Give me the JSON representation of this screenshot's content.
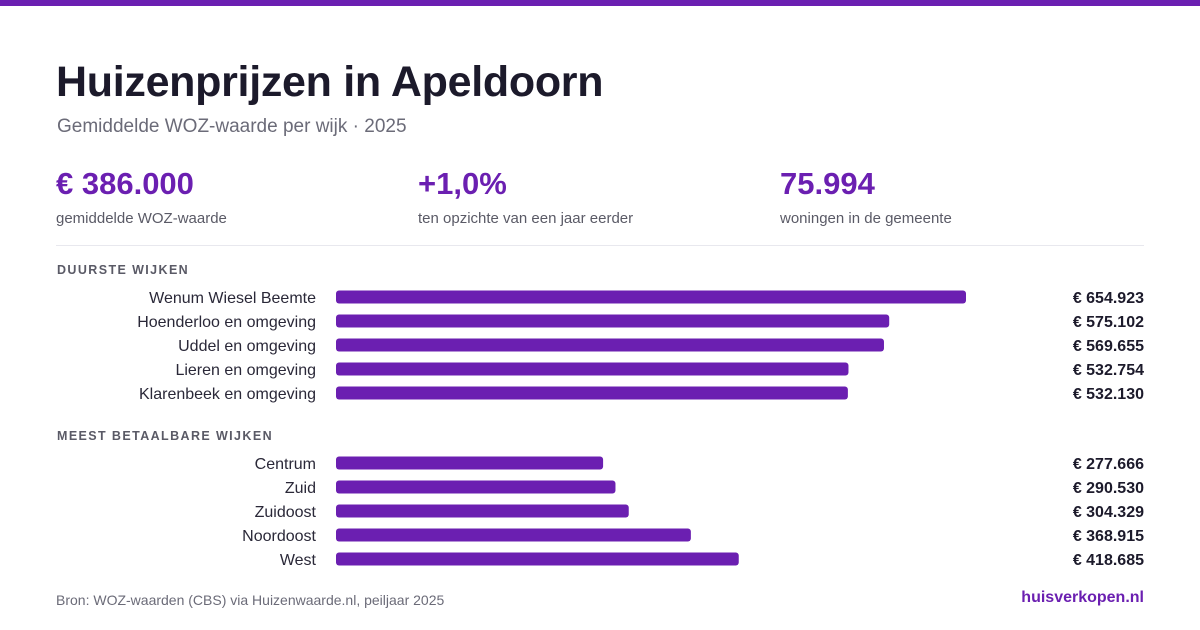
{
  "header": {
    "title": "Huizenprijzen in Apeldoorn",
    "subtitle": "Gemiddelde WOZ-waarde per wijk · 2025"
  },
  "stats": [
    {
      "value": "€ 386.000",
      "label": "gemiddelde WOZ-waarde"
    },
    {
      "value": "+1,0%",
      "label": "ten opzichte van een jaar eerder"
    },
    {
      "value": "75.994",
      "label": "woningen in de gemeente"
    }
  ],
  "colors": {
    "accent": "#6b1fb1",
    "text": "#1c1a2b",
    "muted": "#6b6b78"
  },
  "chart_data": [
    {
      "type": "bar",
      "orientation": "horizontal",
      "title": "DUURSTE WIJKEN",
      "categories": [
        "Wenum Wiesel Beemte",
        "Hoenderloo en omgeving",
        "Uddel en omgeving",
        "Lieren en omgeving",
        "Klarenbeek en omgeving"
      ],
      "values": [
        654923,
        575102,
        569655,
        532754,
        532130
      ],
      "value_labels": [
        "€ 654.923",
        "€ 575.102",
        "€ 569.655",
        "€ 532.754",
        "€ 532.130"
      ],
      "xlim": [
        0,
        654923
      ],
      "grid": false
    },
    {
      "type": "bar",
      "orientation": "horizontal",
      "title": "MEEST BETAALBARE WIJKEN",
      "categories": [
        "Centrum",
        "Zuid",
        "Zuidoost",
        "Noordoost",
        "West"
      ],
      "values": [
        277666,
        290530,
        304329,
        368915,
        418685
      ],
      "value_labels": [
        "€ 277.666",
        "€ 290.530",
        "€ 304.329",
        "€ 368.915",
        "€ 418.685"
      ],
      "xlim": [
        0,
        654923
      ],
      "grid": false
    }
  ],
  "footer": {
    "source": "Bron: WOZ-waarden (CBS) via Huizenwaarde.nl, peiljaar 2025",
    "brand": "huisverkopen.nl"
  }
}
